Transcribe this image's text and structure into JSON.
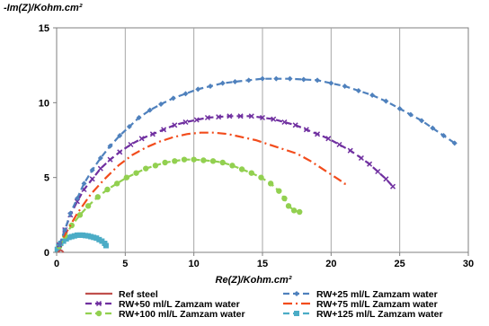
{
  "chart_data": {
    "type": "scatter",
    "title": "",
    "xlabel": "Re(Z)/Kohm.cm²",
    "ylabel": "-Im(Z)/Kohm.cm²",
    "xlim": [
      0,
      30
    ],
    "ylim": [
      0,
      15
    ],
    "xticks": [
      "0",
      "5",
      "10",
      "15",
      "20",
      "25",
      "30"
    ],
    "yticks": [
      "0",
      "5",
      "10",
      "15"
    ],
    "grid": "vertical",
    "legend_position": "bottom",
    "series": [
      {
        "name": "Ref steel",
        "color": "#c0504d",
        "dash": "solid",
        "marker": "none",
        "x": [
          0.1,
          0.2,
          0.3,
          0.4,
          0.5
        ],
        "y": [
          0.0,
          0.1,
          0.15,
          0.1,
          0.0
        ]
      },
      {
        "name": "RW+25 ml/L Zamzam water",
        "color": "#4f81bd",
        "dash": "dashed",
        "marker": "diamond",
        "x": [
          0.2,
          0.6,
          1.0,
          1.5,
          2.0,
          2.6,
          3.2,
          3.9,
          4.6,
          5.3,
          6.0,
          6.8,
          7.6,
          8.5,
          9.4,
          10.3,
          11.2,
          12.1,
          13.0,
          14.0,
          15.0,
          16.0,
          17.0,
          18.0,
          19.0,
          20.0,
          21.0,
          22.0,
          23.0,
          24.0,
          25.0,
          25.8,
          26.6,
          27.4,
          28.2,
          29.0
        ],
        "y": [
          0.5,
          1.5,
          2.6,
          3.6,
          4.6,
          5.5,
          6.3,
          7.1,
          7.8,
          8.4,
          9.0,
          9.5,
          9.9,
          10.3,
          10.6,
          10.9,
          11.1,
          11.3,
          11.4,
          11.5,
          11.6,
          11.6,
          11.6,
          11.55,
          11.5,
          11.3,
          11.1,
          10.8,
          10.5,
          10.1,
          9.6,
          9.2,
          8.8,
          8.3,
          7.8,
          7.3
        ]
      },
      {
        "name": "RW+50 ml/L Zamzam water",
        "color": "#7030a0",
        "dash": "dashed",
        "marker": "cross",
        "x": [
          0.2,
          0.6,
          1.0,
          1.5,
          2.0,
          2.6,
          3.2,
          3.9,
          4.6,
          5.4,
          6.2,
          7.0,
          7.8,
          8.6,
          9.4,
          10.2,
          11.0,
          11.8,
          12.6,
          13.4,
          14.2,
          15.0,
          15.8,
          16.6,
          17.4,
          18.2,
          19.0,
          19.8,
          20.6,
          21.4,
          22.2,
          22.8,
          23.4,
          24.0,
          24.5
        ],
        "y": [
          0.5,
          1.5,
          2.5,
          3.4,
          4.2,
          4.9,
          5.6,
          6.2,
          6.7,
          7.2,
          7.6,
          7.9,
          8.2,
          8.5,
          8.7,
          8.85,
          9.0,
          9.05,
          9.1,
          9.1,
          9.1,
          9.0,
          8.9,
          8.7,
          8.5,
          8.2,
          7.9,
          7.6,
          7.2,
          6.8,
          6.3,
          5.9,
          5.4,
          4.9,
          4.4
        ]
      },
      {
        "name": "RW+75 ml/L Zamzam water",
        "color": "#f24c1c",
        "dash": "dashdot",
        "marker": "none",
        "x": [
          0.5,
          1.5,
          2.5,
          3.5,
          4.5,
          5.5,
          6.5,
          7.5,
          8.5,
          9.5,
          10.5,
          11.5,
          12.5,
          13.5,
          14.5,
          15.5,
          16.5,
          17.5,
          18.5,
          19.5,
          20.5,
          21.0,
          21.0
        ],
        "y": [
          1.0,
          2.6,
          3.9,
          4.9,
          5.8,
          6.5,
          7.0,
          7.4,
          7.7,
          7.9,
          8.0,
          8.0,
          7.9,
          7.7,
          7.5,
          7.2,
          6.9,
          6.6,
          6.1,
          5.5,
          4.9,
          4.6,
          4.4
        ]
      },
      {
        "name": "RW+100 ml/L Zamzam water",
        "color": "#92d050",
        "dash": "dashed",
        "marker": "circle",
        "x": [
          0.2,
          0.6,
          1.1,
          1.7,
          2.3,
          3.0,
          3.7,
          4.4,
          5.1,
          5.8,
          6.5,
          7.2,
          7.9,
          8.6,
          9.3,
          10.0,
          10.7,
          11.4,
          12.1,
          12.8,
          13.5,
          14.2,
          14.9,
          15.6,
          16.2,
          16.6,
          16.9,
          17.3,
          17.7
        ],
        "y": [
          0.4,
          1.1,
          1.8,
          2.5,
          3.1,
          3.7,
          4.2,
          4.6,
          5.0,
          5.3,
          5.6,
          5.8,
          6.0,
          6.1,
          6.2,
          6.2,
          6.15,
          6.1,
          6.0,
          5.8,
          5.55,
          5.3,
          5.0,
          4.6,
          4.1,
          3.6,
          3.1,
          2.8,
          2.7
        ]
      },
      {
        "name": "RW+125 ml/L Zamzam water",
        "color": "#4bacc6",
        "dash": "dashed",
        "marker": "square",
        "x": [
          0.05,
          0.15,
          0.3,
          0.5,
          0.7,
          0.9,
          1.1,
          1.3,
          1.5,
          1.7,
          1.9,
          2.1,
          2.3,
          2.5,
          2.7,
          2.9,
          3.1,
          3.3,
          3.5,
          3.6
        ],
        "y": [
          0.2,
          0.4,
          0.6,
          0.75,
          0.9,
          1.0,
          1.05,
          1.1,
          1.15,
          1.15,
          1.15,
          1.12,
          1.1,
          1.05,
          1.0,
          0.95,
          0.85,
          0.75,
          0.6,
          0.45
        ]
      }
    ]
  }
}
